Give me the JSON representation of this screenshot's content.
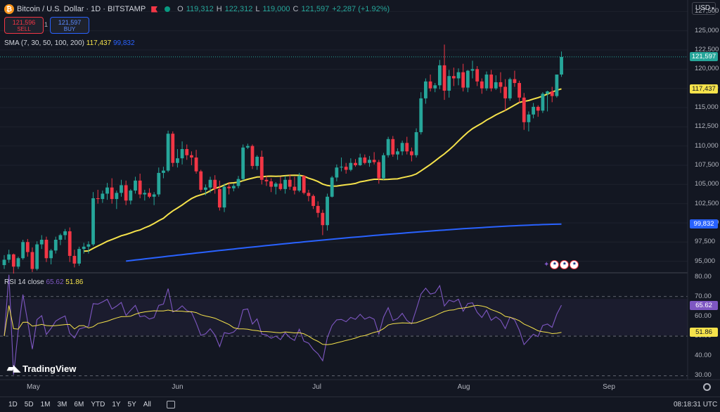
{
  "header": {
    "symbol_title": "Bitcoin / U.S. Dollar · 1D · BITSTAMP",
    "coin_glyph": "₿",
    "ohlc": {
      "o_label": "O",
      "o": "119,312",
      "h_label": "H",
      "h": "122,312",
      "l_label": "L",
      "l": "119,000",
      "c_label": "C",
      "c": "121,597",
      "change": "+2,287 (+1.92%)"
    }
  },
  "trade": {
    "sell_price": "121,596",
    "sell_label": "SELL",
    "spread": "1",
    "buy_price": "121,597",
    "buy_label": "BUY"
  },
  "indicators": {
    "sma_label": "SMA (7, 30, 50, 100, 200)",
    "sma_value_1": "117,437",
    "sma_value_2": "99,832",
    "rsi_label": "RSI 14 close",
    "rsi_value": "65.62",
    "rsi_ma_value": "51.86"
  },
  "currency_button": "USD",
  "price_axis": [
    "127,500",
    "125,000",
    "122,500",
    "120,000",
    "117,500",
    "115,000",
    "112,500",
    "110,000",
    "107,500",
    "105,000",
    "102,500",
    "100,000",
    "97,500",
    "95,000"
  ],
  "rsi_axis": [
    "80.00",
    "70.00",
    "60.00",
    "50.00",
    "40.00",
    "30.00"
  ],
  "price_tags": {
    "last_price": "121,597",
    "sma_fast": "117,437",
    "sma_slow": "99,832",
    "rsi": "65.62",
    "rsi_ma": "51.86"
  },
  "time_axis": [
    "May",
    "Jun",
    "Jul",
    "Aug",
    "Sep"
  ],
  "bottom_bar": {
    "ranges": [
      "1D",
      "5D",
      "1M",
      "3M",
      "6M",
      "YTD",
      "1Y",
      "5Y",
      "All"
    ],
    "clock": "08:18:31 UTC"
  },
  "logo_text": "TradingView",
  "colors": {
    "background": "#131722",
    "up_candle": "#26a69a",
    "down_candle": "#f23645",
    "sma_fast": "#f5e24b",
    "sma_slow": "#2962ff",
    "rsi": "#7e57c2"
  },
  "chart_data": {
    "type": "candlestick",
    "title": "Bitcoin / U.S. Dollar · 1D · BITSTAMP",
    "x_range": [
      "Apr 17",
      "Aug 14"
    ],
    "ylim": [
      93500,
      129000
    ],
    "candles_ohlc": [
      [
        94500,
        95800,
        94000,
        95200
      ],
      [
        95200,
        96500,
        94800,
        95900
      ],
      [
        95900,
        96000,
        93400,
        94300
      ],
      [
        94300,
        95600,
        94000,
        95400
      ],
      [
        95400,
        97800,
        95200,
        97500
      ],
      [
        97500,
        97900,
        95600,
        96200
      ],
      [
        96200,
        96800,
        93600,
        94000
      ],
      [
        94000,
        97600,
        93800,
        97200
      ],
      [
        97200,
        98400,
        96600,
        97800
      ],
      [
        97800,
        98200,
        94900,
        95400
      ],
      [
        95400,
        96600,
        94600,
        96400
      ],
      [
        96400,
        98200,
        96000,
        97800
      ],
      [
        97800,
        98600,
        97100,
        98400
      ],
      [
        98400,
        99200,
        97800,
        98900
      ],
      [
        98900,
        99400,
        94900,
        95700
      ],
      [
        95700,
        96500,
        94200,
        94700
      ],
      [
        94700,
        96900,
        94400,
        96600
      ],
      [
        96600,
        97400,
        96000,
        96900
      ],
      [
        96900,
        97600,
        96000,
        97200
      ],
      [
        97200,
        104000,
        97000,
        103200
      ],
      [
        103200,
        104300,
        102500,
        103100
      ],
      [
        103100,
        104200,
        102600,
        103800
      ],
      [
        103800,
        105200,
        103000,
        104600
      ],
      [
        104600,
        105800,
        102500,
        103100
      ],
      [
        103100,
        104200,
        101800,
        103900
      ],
      [
        103900,
        105600,
        103400,
        104900
      ],
      [
        104900,
        105500,
        102300,
        102900
      ],
      [
        102900,
        104400,
        102400,
        104200
      ],
      [
        104200,
        106000,
        103800,
        105500
      ],
      [
        105500,
        106400,
        103200,
        103700
      ],
      [
        103700,
        104300,
        102900,
        103900
      ],
      [
        103900,
        104500,
        103200,
        103400
      ],
      [
        103400,
        104000,
        102300,
        103700
      ],
      [
        103700,
        107200,
        103400,
        106500
      ],
      [
        106500,
        107300,
        105800,
        106800
      ],
      [
        106800,
        112000,
        106600,
        111600
      ],
      [
        111600,
        111900,
        107300,
        107800
      ],
      [
        107800,
        109600,
        107200,
        108400
      ],
      [
        108400,
        110600,
        107600,
        109600
      ],
      [
        109600,
        110200,
        108200,
        108800
      ],
      [
        108800,
        109300,
        107500,
        108500
      ],
      [
        108500,
        109500,
        106400,
        106700
      ],
      [
        106700,
        106900,
        104000,
        104300
      ],
      [
        104300,
        105000,
        103600,
        104600
      ],
      [
        104600,
        106000,
        103900,
        105600
      ],
      [
        105600,
        106200,
        103800,
        104400
      ],
      [
        104400,
        105500,
        101600,
        102000
      ],
      [
        102000,
        105100,
        101400,
        104700
      ],
      [
        104700,
        105300,
        103700,
        104500
      ],
      [
        104500,
        105100,
        104100,
        104800
      ],
      [
        104800,
        106100,
        104500,
        105700
      ],
      [
        105700,
        110200,
        105500,
        109800
      ],
      [
        109800,
        110300,
        109600,
        110000
      ],
      [
        110000,
        110200,
        107000,
        107400
      ],
      [
        107400,
        108800,
        106900,
        108600
      ],
      [
        108600,
        109400,
        105000,
        105600
      ],
      [
        105600,
        106100,
        104800,
        105400
      ],
      [
        105400,
        105800,
        104000,
        104700
      ],
      [
        104700,
        105300,
        103700,
        105100
      ],
      [
        105100,
        106000,
        104200,
        104400
      ],
      [
        104400,
        106100,
        103800,
        105600
      ],
      [
        105600,
        106300,
        104300,
        104700
      ],
      [
        104700,
        106000,
        103700,
        104200
      ],
      [
        104200,
        106500,
        104000,
        106100
      ],
      [
        106100,
        106200,
        103700,
        103900
      ],
      [
        103900,
        104300,
        102800,
        103500
      ],
      [
        103500,
        103700,
        101800,
        102200
      ],
      [
        102200,
        102800,
        100700,
        101300
      ],
      [
        101300,
        101700,
        98400,
        99700
      ],
      [
        99700,
        103800,
        99000,
        103400
      ],
      [
        103400,
        106100,
        103300,
        105900
      ],
      [
        105900,
        107600,
        105400,
        107200
      ],
      [
        107200,
        108500,
        106700,
        107300
      ],
      [
        107300,
        107800,
        106400,
        106900
      ],
      [
        106900,
        108400,
        106700,
        107800
      ],
      [
        107800,
        108300,
        107300,
        107500
      ],
      [
        107500,
        109000,
        107400,
        108500
      ],
      [
        108500,
        108900,
        107600,
        107800
      ],
      [
        107800,
        108700,
        107300,
        108200
      ],
      [
        108200,
        109200,
        107600,
        107900
      ],
      [
        107900,
        108200,
        105100,
        105800
      ],
      [
        105800,
        109100,
        105600,
        108800
      ],
      [
        108800,
        111200,
        108500,
        110900
      ],
      [
        110900,
        111300,
        108600,
        108900
      ],
      [
        108900,
        109700,
        108200,
        109300
      ],
      [
        109300,
        110700,
        108800,
        110400
      ],
      [
        110400,
        111200,
        108900,
        109300
      ],
      [
        109300,
        109800,
        108000,
        108800
      ],
      [
        108800,
        112300,
        108500,
        111800
      ],
      [
        111800,
        117000,
        111500,
        116200
      ],
      [
        116200,
        118800,
        115500,
        118400
      ],
      [
        118400,
        119300,
        117100,
        117500
      ],
      [
        117500,
        118200,
        117000,
        117900
      ],
      [
        117900,
        121200,
        117400,
        120500
      ],
      [
        120500,
        123200,
        116000,
        117200
      ],
      [
        117200,
        119900,
        116300,
        119100
      ],
      [
        119100,
        120200,
        117800,
        118800
      ],
      [
        118800,
        120100,
        117900,
        119600
      ],
      [
        119600,
        120700,
        117100,
        117600
      ],
      [
        117600,
        119900,
        117000,
        119800
      ],
      [
        119800,
        121100,
        118800,
        120000
      ],
      [
        120000,
        120400,
        117800,
        118400
      ],
      [
        118400,
        118800,
        116800,
        117500
      ],
      [
        117500,
        119700,
        117200,
        119300
      ],
      [
        119300,
        119900,
        117100,
        117500
      ],
      [
        117500,
        119200,
        117300,
        118300
      ],
      [
        118300,
        119600,
        116900,
        117700
      ],
      [
        117700,
        118700,
        114600,
        116200
      ],
      [
        116200,
        118900,
        115900,
        118700
      ],
      [
        118700,
        119800,
        117700,
        118200
      ],
      [
        118200,
        118500,
        115600,
        116300
      ],
      [
        116300,
        116900,
        112100,
        113100
      ],
      [
        113100,
        114500,
        111900,
        114100
      ],
      [
        114100,
        115600,
        113600,
        115100
      ],
      [
        115100,
        115300,
        113800,
        114600
      ],
      [
        114600,
        117000,
        114300,
        116800
      ],
      [
        116800,
        117200,
        114500,
        117100
      ],
      [
        117100,
        117700,
        115700,
        116500
      ],
      [
        116500,
        119300,
        116300,
        119300
      ],
      [
        119300,
        122300,
        119000,
        121600
      ]
    ],
    "sma_fast_last": 117437,
    "sma_slow_last": 99832,
    "rsi_ylim": [
      28,
      82
    ],
    "rsi_levels": [
      70,
      50,
      30
    ],
    "rsi_last": 65.62,
    "rsi_ma_last": 51.86
  }
}
